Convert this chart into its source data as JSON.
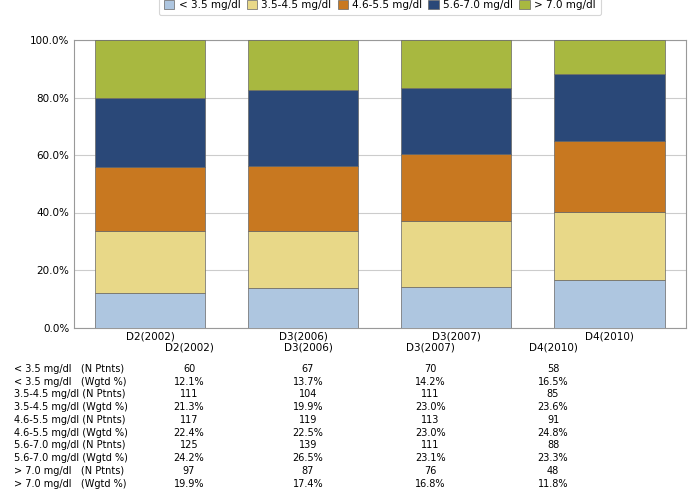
{
  "categories": [
    "D2(2002)",
    "D3(2006)",
    "D3(2007)",
    "D4(2010)"
  ],
  "segments": [
    {
      "label": "< 3.5 mg/dl",
      "color": "#aec6e0",
      "values": [
        12.1,
        13.7,
        14.2,
        16.5
      ]
    },
    {
      "label": "3.5-4.5 mg/dl",
      "color": "#e8d888",
      "values": [
        21.3,
        19.9,
        23.0,
        23.6
      ]
    },
    {
      "label": "4.6-5.5 mg/dl",
      "color": "#c87820",
      "values": [
        22.4,
        22.5,
        23.0,
        24.8
      ]
    },
    {
      "label": "5.6-7.0 mg/dl",
      "color": "#2a4878",
      "values": [
        24.2,
        26.5,
        23.1,
        23.3
      ]
    },
    {
      "label": "> 7.0 mg/dl",
      "color": "#a8b840",
      "values": [
        19.9,
        17.4,
        16.8,
        11.8
      ]
    }
  ],
  "table_rows": [
    [
      "< 3.5 mg/dl   (N Ptnts)",
      "60",
      "67",
      "70",
      "58"
    ],
    [
      "< 3.5 mg/dl   (Wgtd %)",
      "12.1%",
      "13.7%",
      "14.2%",
      "16.5%"
    ],
    [
      "3.5-4.5 mg/dl (N Ptnts)",
      "111",
      "104",
      "111",
      "85"
    ],
    [
      "3.5-4.5 mg/dl (Wgtd %)",
      "21.3%",
      "19.9%",
      "23.0%",
      "23.6%"
    ],
    [
      "4.6-5.5 mg/dl (N Ptnts)",
      "117",
      "119",
      "113",
      "91"
    ],
    [
      "4.6-5.5 mg/dl (Wgtd %)",
      "22.4%",
      "22.5%",
      "23.0%",
      "24.8%"
    ],
    [
      "5.6-7.0 mg/dl (N Ptnts)",
      "125",
      "139",
      "111",
      "88"
    ],
    [
      "5.6-7.0 mg/dl (Wgtd %)",
      "24.2%",
      "26.5%",
      "23.1%",
      "23.3%"
    ],
    [
      "> 7.0 mg/dl   (N Ptnts)",
      "97",
      "87",
      "76",
      "48"
    ],
    [
      "> 7.0 mg/dl   (Wgtd %)",
      "19.9%",
      "17.4%",
      "16.8%",
      "11.8%"
    ]
  ],
  "ylim": [
    0,
    100
  ],
  "yticks": [
    0,
    20,
    40,
    60,
    80,
    100
  ],
  "ytick_labels": [
    "0.0%",
    "20.0%",
    "40.0%",
    "60.0%",
    "80.0%",
    "100.0%"
  ],
  "bar_width": 0.72,
  "figure_bg": "#ffffff",
  "grid_color": "#cccccc",
  "table_fontsize": 7.0,
  "legend_fontsize": 7.5,
  "tick_fontsize": 7.5,
  "legend_frame_color": "#cccccc",
  "spine_color": "#999999"
}
